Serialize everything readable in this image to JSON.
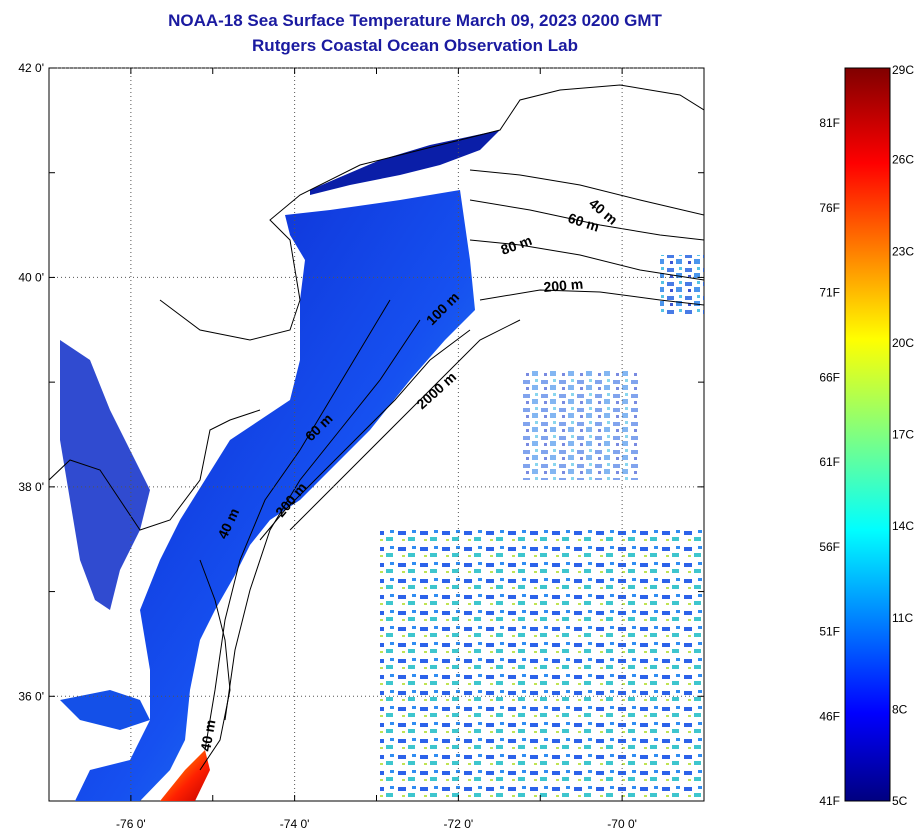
{
  "title": "NOAA-18 Sea Surface Temperature March 09, 2023 0200 GMT",
  "subtitle": "Rutgers Coastal Ocean Observation Lab",
  "map": {
    "lon_range": [
      -77,
      -69
    ],
    "lat_range": [
      35,
      42
    ],
    "lon_ticks": [
      {
        "value": -76,
        "label": "-76 0'"
      },
      {
        "value": -74,
        "label": "-74 0'"
      },
      {
        "value": -72,
        "label": "-72 0'"
      },
      {
        "value": -70,
        "label": "-70 0'"
      }
    ],
    "lat_ticks": [
      {
        "value": 42,
        "label": "42 0'"
      },
      {
        "value": 40,
        "label": "40 0'"
      },
      {
        "value": 38,
        "label": "38 0'"
      },
      {
        "value": 36,
        "label": "36 0'"
      }
    ],
    "grid": "dotted",
    "contour_labels": [
      "40 m",
      "60 m",
      "80 m",
      "200 m",
      "100 m",
      "2000 m",
      "60 m",
      "200 m",
      "40 m",
      "40 m"
    ]
  },
  "colorbar": {
    "celsius_labels": [
      "29C",
      "26C",
      "23C",
      "20C",
      "17C",
      "14C",
      "11C",
      "8C",
      "5C"
    ],
    "fahrenheit_labels": [
      "81F",
      "76F",
      "71F",
      "66F",
      "61F",
      "56F",
      "51F",
      "46F",
      "41F"
    ],
    "colors": [
      "#800000",
      "#ff0000",
      "#ff8000",
      "#ffff00",
      "#80ff80",
      "#00ffff",
      "#0080ff",
      "#0000ff",
      "#000080"
    ]
  }
}
